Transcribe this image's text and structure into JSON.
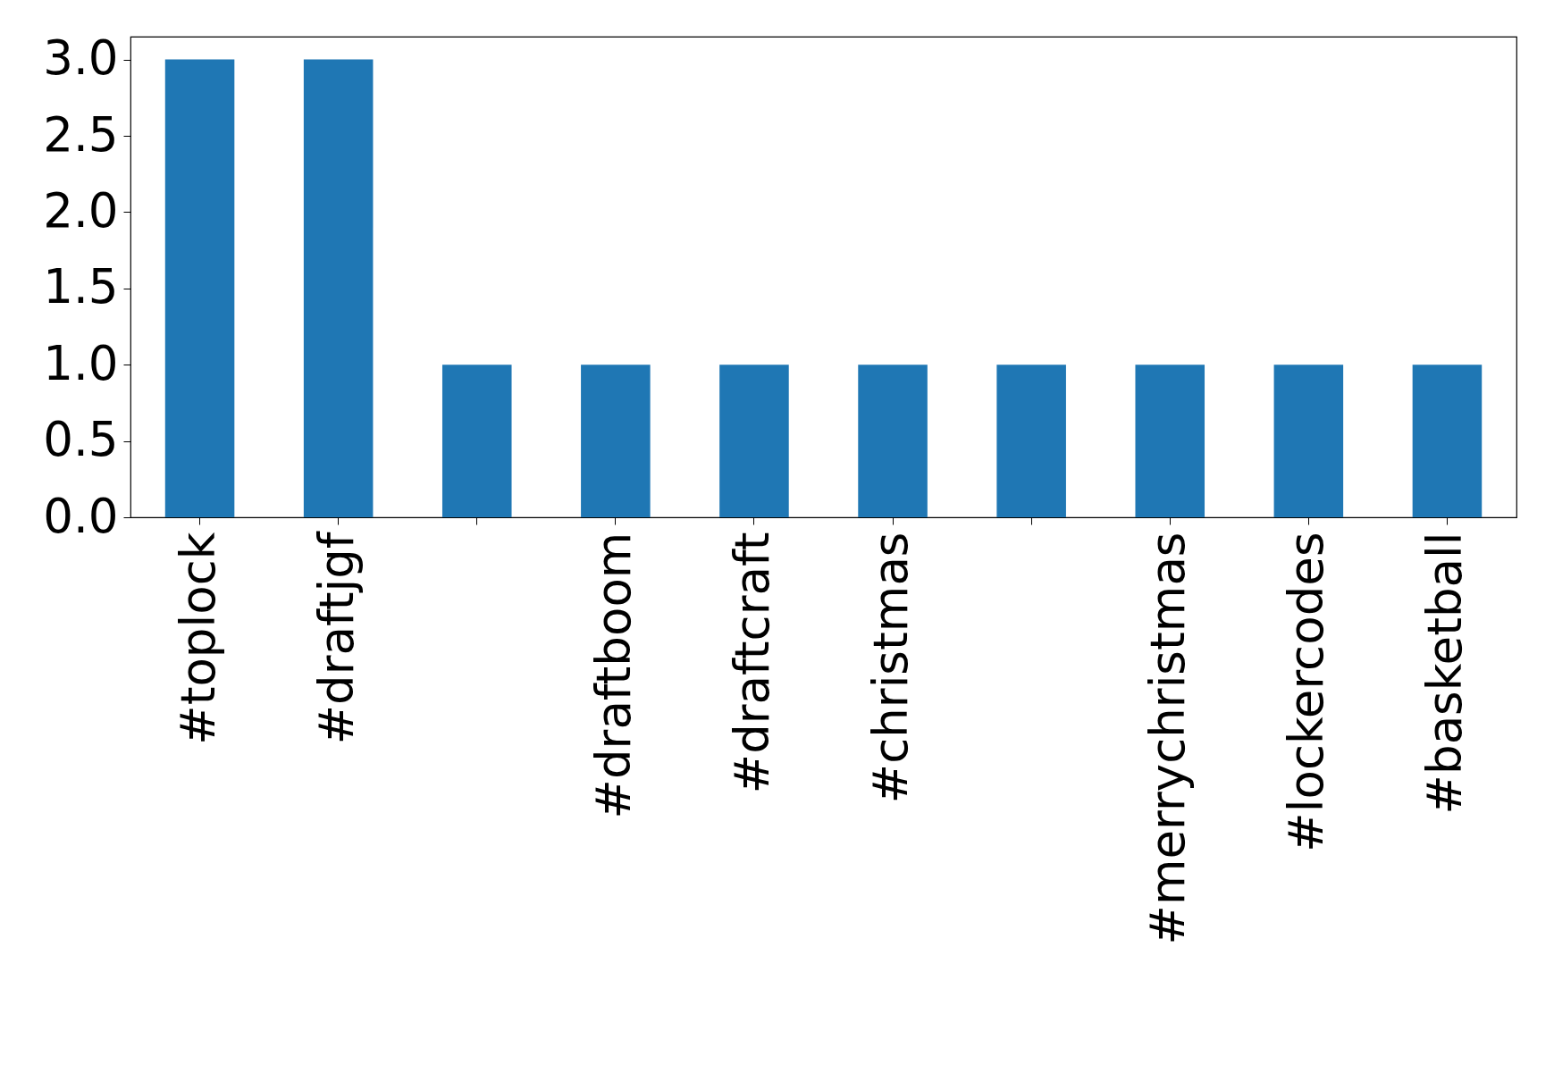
{
  "chart_data": {
    "type": "bar",
    "categories": [
      "#toplock",
      "#draftjgf",
      null,
      "#draftboom",
      "#draftcraft",
      "#christmas",
      null,
      "#merrychristmas",
      "#lockercodes",
      "#basketball"
    ],
    "values": [
      3,
      3,
      1,
      1,
      1,
      1,
      1,
      1,
      1,
      1
    ],
    "color": "#1f77b4",
    "ylim": [
      0,
      3.15
    ],
    "yticks": [
      {
        "value": 0,
        "label": "0.0"
      },
      0.5,
      {
        "value": 1,
        "label": "1.0"
      },
      1.5,
      {
        "value": 2,
        "label": "2.0"
      },
      2.5,
      {
        "value": 3,
        "label": "3.0"
      }
    ],
    "grid": false
  }
}
